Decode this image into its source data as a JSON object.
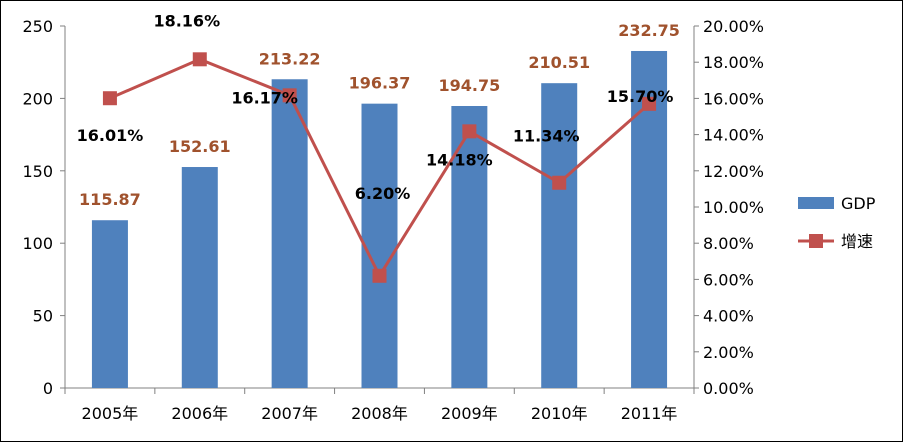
{
  "chart_data": {
    "type": "bar",
    "categories": [
      "2005年",
      "2006年",
      "2007年",
      "2008年",
      "2009年",
      "2010年",
      "2011年"
    ],
    "series": [
      {
        "name": "GDP",
        "type": "bar",
        "axis": "left",
        "color": "#4F81BD",
        "values": [
          115.87,
          152.61,
          213.22,
          196.37,
          194.75,
          210.51,
          232.75
        ],
        "labels": [
          "115.87",
          "152.61",
          "213.22",
          "196.37",
          "194.75",
          "210.51",
          "232.75"
        ],
        "label_color": "#A0522D"
      },
      {
        "name": "增速",
        "type": "line",
        "axis": "right",
        "color": "#C0504D",
        "values": [
          16.01,
          18.16,
          16.17,
          6.2,
          14.18,
          11.34,
          15.7
        ],
        "labels": [
          "16.01%",
          "18.16%",
          "16.17%",
          "6.20%",
          "14.18%",
          "11.34%",
          "15.70%"
        ],
        "label_color": "#000000"
      }
    ],
    "y_left": {
      "range": [
        0,
        250
      ],
      "ticks": [
        "0",
        "50",
        "100",
        "150",
        "200",
        "250"
      ]
    },
    "y_right": {
      "range": [
        0,
        20
      ],
      "ticks": [
        "0.00%",
        "2.00%",
        "4.00%",
        "6.00%",
        "8.00%",
        "10.00%",
        "12.00%",
        "14.00%",
        "16.00%",
        "18.00%",
        "20.00%"
      ]
    },
    "legend": {
      "position": "right",
      "entries": [
        "GDP",
        "增速"
      ]
    },
    "grid": false
  }
}
